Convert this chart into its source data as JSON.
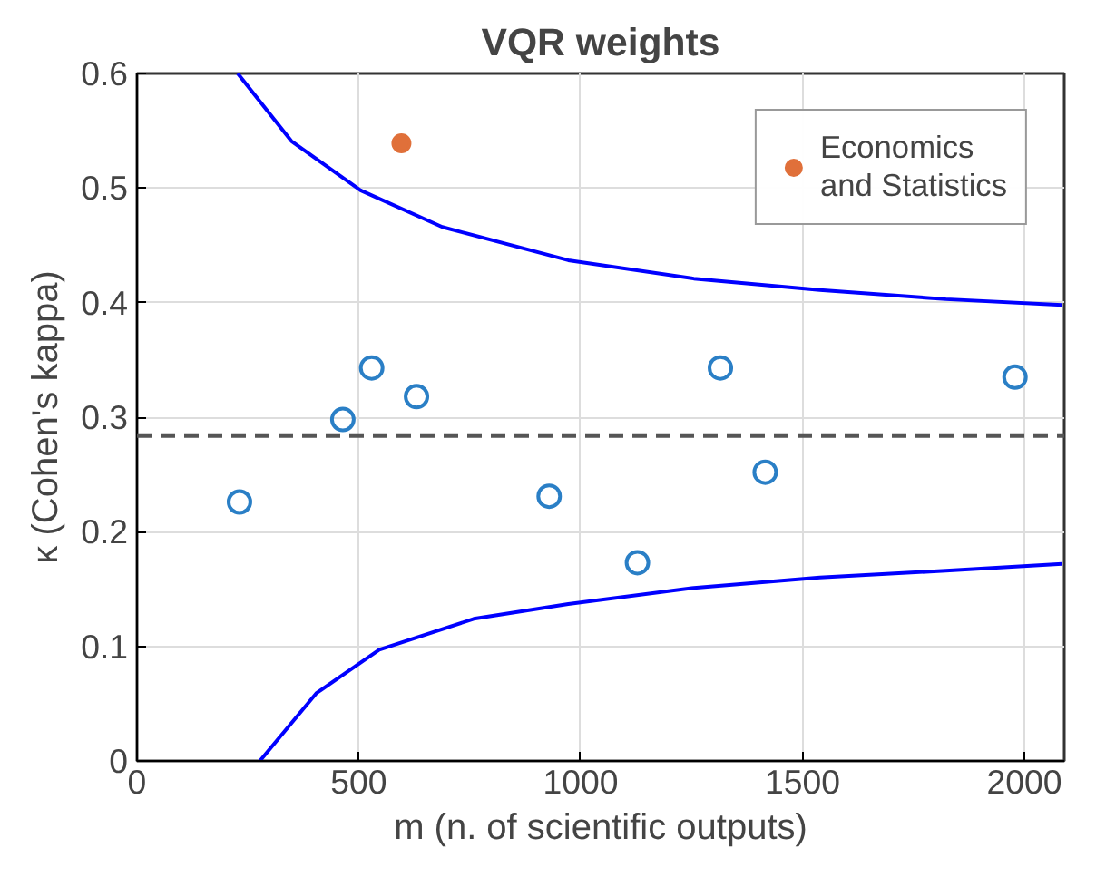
{
  "chart_data": {
    "type": "scatter",
    "title": "VQR weights",
    "xlabel": "m (n. of scientific outputs)",
    "ylabel": "κ (Cohen's kappa)",
    "xlim": [
      0,
      2090
    ],
    "ylim": [
      0,
      0.6
    ],
    "xticks": [
      0,
      500,
      1000,
      1500,
      2000
    ],
    "yticks": [
      0,
      0.1,
      0.2,
      0.3,
      0.4,
      0.5,
      0.6
    ],
    "grid": true,
    "legend": "top right",
    "marker": "circle",
    "series": [
      {
        "color": "#2a7fc6",
        "x": [
          231,
          464,
          529,
          630,
          929,
          1128,
          1315,
          1416,
          1979
        ],
        "values": [
          0.226,
          0.298,
          0.343,
          0.318,
          0.231,
          0.173,
          0.343,
          0.252,
          0.335
        ]
      },
      {
        "name": "Economics and Statistics",
        "color": "#e0703a",
        "x": [
          596
        ],
        "values": [
          0.539
        ]
      },
      {
        "type": "line",
        "color": "#0000ff",
        "line_style": "solid",
        "marker": "none",
        "x": [
          227,
          348,
          504,
          688,
          972,
          1255,
          1539,
          1823,
          2085
        ],
        "values": [
          0.6,
          0.541,
          0.498,
          0.466,
          0.437,
          0.421,
          0.411,
          0.403,
          0.398
        ]
      },
      {
        "type": "line",
        "color": "#0000ff",
        "line_style": "solid",
        "marker": "none",
        "x": [
          277,
          404,
          546,
          759,
          972,
          1255,
          1539,
          1823,
          2085
        ],
        "values": [
          0,
          0.059,
          0.097,
          0.124,
          0.137,
          0.151,
          0.16,
          0.166,
          0.172
        ]
      }
    ],
    "ref_lines": [
      {
        "axis": "y",
        "value": 0.284,
        "color": "#555555",
        "line_style": "dashed"
      }
    ]
  }
}
